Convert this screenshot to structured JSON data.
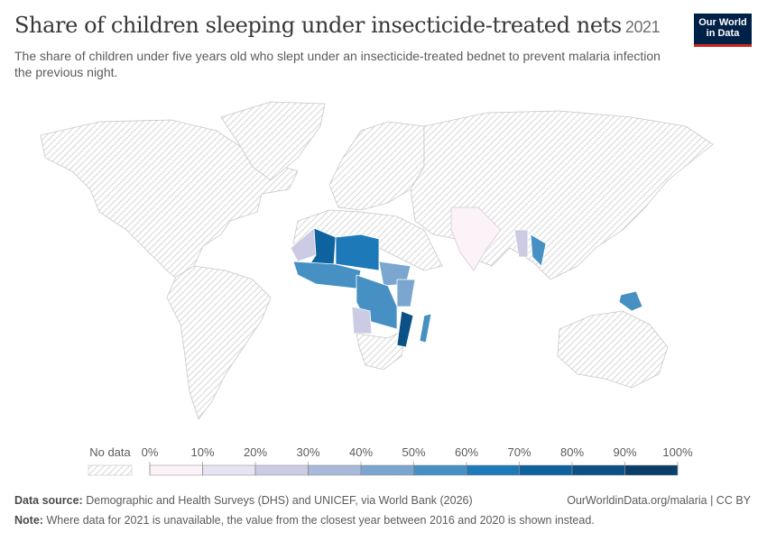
{
  "header": {
    "title": "Share of children sleeping under insecticide-treated nets",
    "year": "2021",
    "subtitle": "The share of children under five years old who slept under an insecticide-treated bednet to prevent malaria infection the previous night."
  },
  "logo": {
    "line1": "Our World",
    "line2": "in Data"
  },
  "legend": {
    "no_data": "No data",
    "ticks": [
      {
        "value": 0,
        "label": "0%"
      },
      {
        "value": 10,
        "label": "10%"
      },
      {
        "value": 20,
        "label": "20%"
      },
      {
        "value": 30,
        "label": "30%"
      },
      {
        "value": 40,
        "label": "40%"
      },
      {
        "value": 50,
        "label": "50%"
      },
      {
        "value": 60,
        "label": "60%"
      },
      {
        "value": 70,
        "label": "70%"
      },
      {
        "value": 80,
        "label": "80%"
      },
      {
        "value": 90,
        "label": "90%"
      },
      {
        "value": 100,
        "label": "100%"
      }
    ],
    "colors": [
      "#fbf3f8",
      "#e6e4f2",
      "#cccbe4",
      "#a9b9d9",
      "#7aa6cf",
      "#4690c3",
      "#1d79b8",
      "#0e639f",
      "#0b5186",
      "#0a3f6a",
      "#082e4e"
    ]
  },
  "footer": {
    "source_label": "Data source:",
    "source": "Demographic and Health Surveys (DHS) and UNICEF, via World Bank (2026)",
    "url": "OurWorldinData.org/malaria | CC BY",
    "note_label": "Note:",
    "note": "Where data for 2021 is unavailable, the value from the closest year between 2016 and 2020 is shown instead."
  }
}
